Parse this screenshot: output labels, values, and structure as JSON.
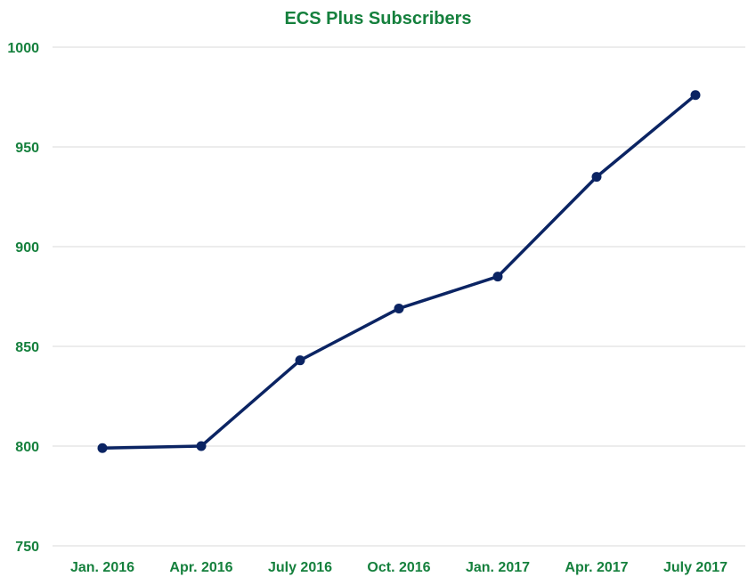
{
  "chart_data": {
    "type": "line",
    "title": "ECS Plus Subscribers",
    "xlabel": "",
    "ylabel": "",
    "categories": [
      "Jan. 2016",
      "Apr. 2016",
      "July 2016",
      "Oct. 2016",
      "Jan. 2017",
      "Apr. 2017",
      "July 2017"
    ],
    "series": [
      {
        "values": [
          799,
          800,
          843,
          869,
          885,
          935,
          976
        ]
      }
    ],
    "ylim": [
      750,
      1000
    ],
    "yticks": [
      750,
      800,
      850,
      900,
      950,
      1000
    ],
    "grid": true,
    "legend": "none",
    "colors": {
      "line": "#0b2463",
      "marker": "#0b2463",
      "text": "#15803d",
      "grid": "#d9d9d9"
    }
  }
}
